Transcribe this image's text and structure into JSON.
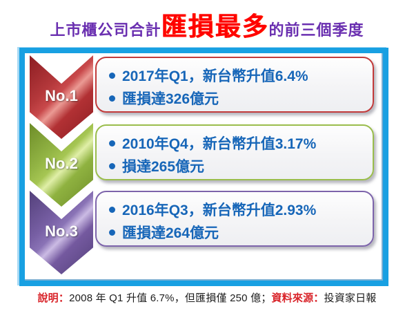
{
  "title": {
    "prefix": "上市櫃公司合計",
    "highlight": "匯損最多",
    "suffix": "的前三個季度"
  },
  "colors": {
    "frame_border": "#18a0e2",
    "title_text": "#6a2fb0",
    "title_highlight": "#ff0000",
    "bullet_text": "#1766b8",
    "rank1_red": "#b4383b",
    "rank2_green": "#93b545",
    "rank3_purple": "#775fa4",
    "footnote_accent": "#d9252b"
  },
  "rankings": [
    {
      "rank": "No.1",
      "color": "red",
      "quarter_line": "2017年Q1，新台幣升值6.4%",
      "loss_line": "匯損達326億元"
    },
    {
      "rank": "No.2",
      "color": "green",
      "quarter_line": "2010年Q4，新台幣升值3.17%",
      "loss_line": "損達265億元"
    },
    {
      "rank": "No.3",
      "color": "purple",
      "quarter_line": "2016年Q3，新台幣升值2.93%",
      "loss_line": "匯損達264億元"
    }
  ],
  "footnote": {
    "note_label": "說明：",
    "note_text": "2008 年 Q1 升值 6.7%，但匯損僅 250 億；",
    "source_label": "資料來源：",
    "source_text": "投資家日報"
  }
}
